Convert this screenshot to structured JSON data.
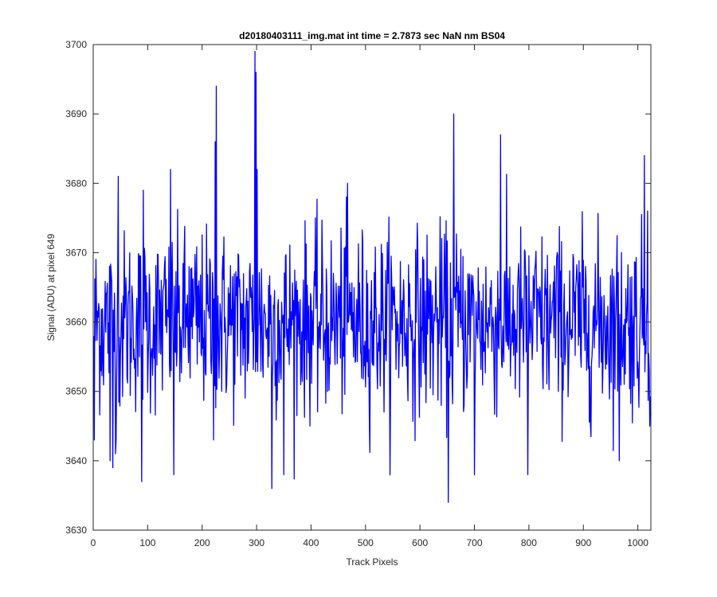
{
  "chart_data": {
    "type": "line",
    "title": "d20180403111_img.mat int time = 2.7873 sec  NaN nm BS04",
    "xlabel": "Track Pixels",
    "ylabel": "Signal (ADU) at pixel 649",
    "xlim": [
      0,
      1024
    ],
    "ylim": [
      3630,
      3700
    ],
    "xticks": [
      0,
      100,
      200,
      300,
      400,
      500,
      600,
      700,
      800,
      900,
      1000
    ],
    "yticks": [
      3630,
      3640,
      3650,
      3660,
      3670,
      3680,
      3690,
      3700
    ],
    "grid": false,
    "legend": "none",
    "series_color": "#0000ff",
    "series": [
      {
        "x_start": 1,
        "x_step": 1,
        "baseline": 3660,
        "noise_sd": 6.5,
        "spikes": [
          {
            "x": 2,
            "y": 3643
          },
          {
            "x": 31,
            "y": 3640
          },
          {
            "x": 36,
            "y": 3639
          },
          {
            "x": 41,
            "y": 3641
          },
          {
            "x": 46,
            "y": 3681
          },
          {
            "x": 89,
            "y": 3637
          },
          {
            "x": 92,
            "y": 3679
          },
          {
            "x": 142,
            "y": 3682
          },
          {
            "x": 148,
            "y": 3638
          },
          {
            "x": 176,
            "y": 3668
          },
          {
            "x": 221,
            "y": 3643
          },
          {
            "x": 224,
            "y": 3686
          },
          {
            "x": 226,
            "y": 3694
          },
          {
            "x": 297,
            "y": 3699
          },
          {
            "x": 299,
            "y": 3696
          },
          {
            "x": 301,
            "y": 3682
          },
          {
            "x": 328,
            "y": 3636
          },
          {
            "x": 350,
            "y": 3638
          },
          {
            "x": 467,
            "y": 3680
          },
          {
            "x": 652,
            "y": 3634
          },
          {
            "x": 662,
            "y": 3690
          },
          {
            "x": 700,
            "y": 3638
          },
          {
            "x": 748,
            "y": 3687
          },
          {
            "x": 798,
            "y": 3638
          },
          {
            "x": 966,
            "y": 3640
          },
          {
            "x": 1012,
            "y": 3684
          },
          {
            "x": 1018,
            "y": 3676
          },
          {
            "x": 1022,
            "y": 3645
          }
        ]
      }
    ]
  }
}
